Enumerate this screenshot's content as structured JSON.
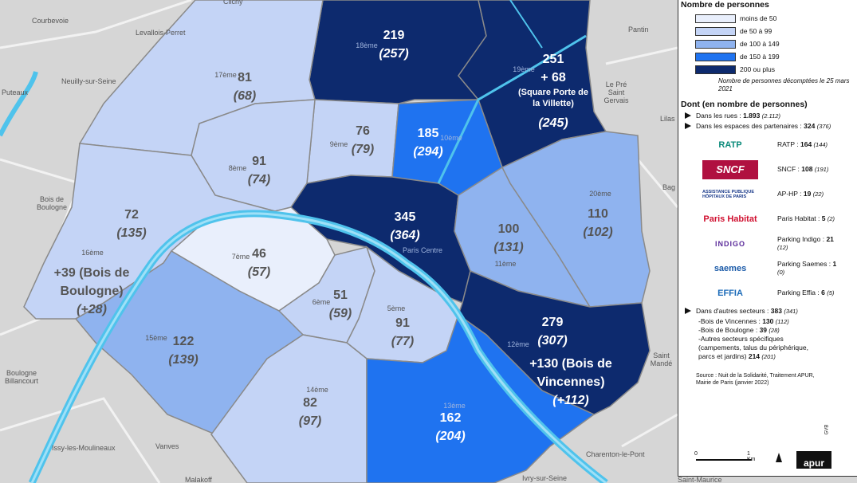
{
  "map": {
    "districts": [
      {
        "name": "18ème",
        "count": "219",
        "previous": "(257)",
        "color": "#0d2a6e"
      },
      {
        "name": "19ème",
        "count": "251",
        "extra": "+ 68",
        "note": "(Square Porte de la Villette)",
        "previous": "(245)",
        "color": "#0d2a6e"
      },
      {
        "name": "17ème",
        "count": "81",
        "previous": "(68)",
        "color": "#c4d4f6"
      },
      {
        "name": "9ème",
        "count": "76",
        "previous": "(79)",
        "color": "#c4d4f6"
      },
      {
        "name": "10ème",
        "count": "185",
        "previous": "(294)",
        "color": "#1f73f0"
      },
      {
        "name": "8ème",
        "count": "91",
        "previous": "(74)",
        "color": "#c4d4f6"
      },
      {
        "name": "16ème",
        "count": "72",
        "previous": "(135)",
        "extra": "+39 (Bois de Boulogne)",
        "extra_previous": "(+28)",
        "color": "#c4d4f6"
      },
      {
        "name": "Paris Centre",
        "count": "345",
        "previous": "(364)",
        "color": "#0d2a6e"
      },
      {
        "name": "11ème",
        "count": "100",
        "previous": "(131)",
        "color": "#8fb3ef"
      },
      {
        "name": "20ème",
        "count": "110",
        "previous": "(102)",
        "color": "#8fb3ef"
      },
      {
        "name": "7ème",
        "count": "46",
        "previous": "(57)",
        "color": "#e9effc"
      },
      {
        "name": "6ème",
        "count": "51",
        "previous": "(59)",
        "color": "#c4d4f6"
      },
      {
        "name": "5ème",
        "count": "91",
        "previous": "(77)",
        "color": "#c4d4f6"
      },
      {
        "name": "12ème",
        "count": "279",
        "previous": "(307)",
        "extra": "+130 (Bois de Vincennes)",
        "extra_previous": "(+112)",
        "color": "#0d2a6e"
      },
      {
        "name": "15ème",
        "count": "122",
        "previous": "(139)",
        "color": "#8fb3ef"
      },
      {
        "name": "14ème",
        "count": "82",
        "previous": "(97)",
        "color": "#c4d4f6"
      },
      {
        "name": "13ème",
        "count": "162",
        "previous": "(204)",
        "color": "#1f73f0"
      }
    ],
    "places": [
      "Clichy",
      "Courbevoie",
      "Levallois-Perret",
      "Neuilly-sur-Seine",
      "Puteaux",
      "Pantin",
      "Le Pré Saint Gervais",
      "Lilas",
      "Bag",
      "Bois de Boulogne",
      "Boulogne Billancourt",
      "Issy-les-Moulineaux",
      "Vanves",
      "Malakoff",
      "Ivry-sur-Seine",
      "Charenton-le-Pont",
      "Saint Mandé",
      "Saint-Maurice"
    ]
  },
  "legend": {
    "title": "Nombre de personnes",
    "classes": [
      {
        "label": "moins de 50",
        "color": "#e9effc"
      },
      {
        "label": "de 50 à 99",
        "color": "#c4d4f6"
      },
      {
        "label": "de 100 à 149",
        "color": "#8fb3ef"
      },
      {
        "label": "de 150 à 199",
        "color": "#1f73f0"
      },
      {
        "label": "200 ou plus",
        "color": "#0d2a6e"
      }
    ],
    "note": "Nombre de personnes décomptées le 25 mars 2021",
    "breakdown_title": "Dont (en nombre de personnes)",
    "streets": {
      "label": "Dans les rues :",
      "value": "1.893",
      "previous": "(2.112)"
    },
    "partners": {
      "label": "Dans les espaces des partenaires :",
      "value": "324",
      "previous": "(376)",
      "items": [
        {
          "logo": "RATP",
          "label": "RATP :",
          "value": "164",
          "previous": "(144)"
        },
        {
          "logo": "SNCF",
          "label": "SNCF :",
          "value": "108",
          "previous": "(191)"
        },
        {
          "logo": "ASSISTANCE PUBLIQUE HÔPITAUX DE PARIS",
          "label": "AP-HP :",
          "value": "19",
          "previous": "(22)"
        },
        {
          "logo": "Paris Habitat",
          "label": "Paris Habitat :",
          "value": "5",
          "previous": "(2)"
        },
        {
          "logo": "INDIGO",
          "label": "Parking Indigo :",
          "value": "21",
          "previous": "(12)"
        },
        {
          "logo": "saemes",
          "label": "Parking Saemes :",
          "value": "1",
          "previous": "(0)"
        },
        {
          "logo": "EFFIA",
          "label": "Parking Effia :",
          "value": "6",
          "previous": "(5)"
        }
      ]
    },
    "other": {
      "label": "Dans d'autres secteurs :",
      "value": "383",
      "previous": "(341)",
      "items": [
        {
          "label": "-Bois de Vincennes :",
          "value": "130",
          "previous": "(112)"
        },
        {
          "label": "-Bois de Boulogne :",
          "value": "39",
          "previous": "(28)"
        },
        {
          "label": "-Autres secteurs spécifiques (campements, talus du périphérique, parcs et jardins)",
          "value": "214",
          "previous": "(201)"
        }
      ]
    },
    "source": "Source : Nuit de la Solidarité, Traitement APUR, Mairie de Paris (janvier 2022)",
    "scale": [
      "0",
      "1 Km"
    ],
    "brand": "apur",
    "credit": "GVB"
  }
}
